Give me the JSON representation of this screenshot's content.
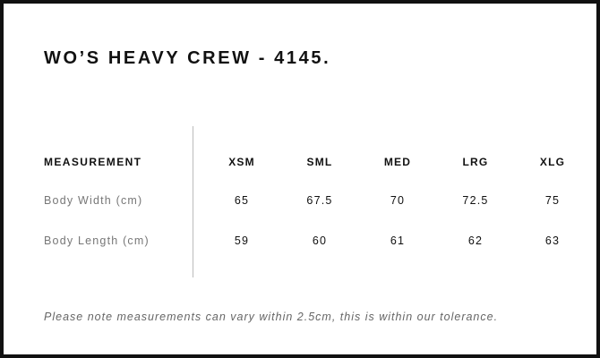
{
  "title": "WO’S HEAVY CREW - 4145.",
  "table": {
    "header": {
      "label": "MEASUREMENT",
      "sizes": [
        "XSM",
        "SML",
        "MED",
        "LRG",
        "XLG"
      ]
    },
    "rows": [
      {
        "label": "Body Width (cm)",
        "values": [
          "65",
          "67.5",
          "70",
          "72.5",
          "75"
        ]
      },
      {
        "label": "Body Length (cm)",
        "values": [
          "59",
          "60",
          "61",
          "62",
          "63"
        ]
      }
    ]
  },
  "note": "Please note measurements can vary within 2.5cm, this is within our tolerance."
}
